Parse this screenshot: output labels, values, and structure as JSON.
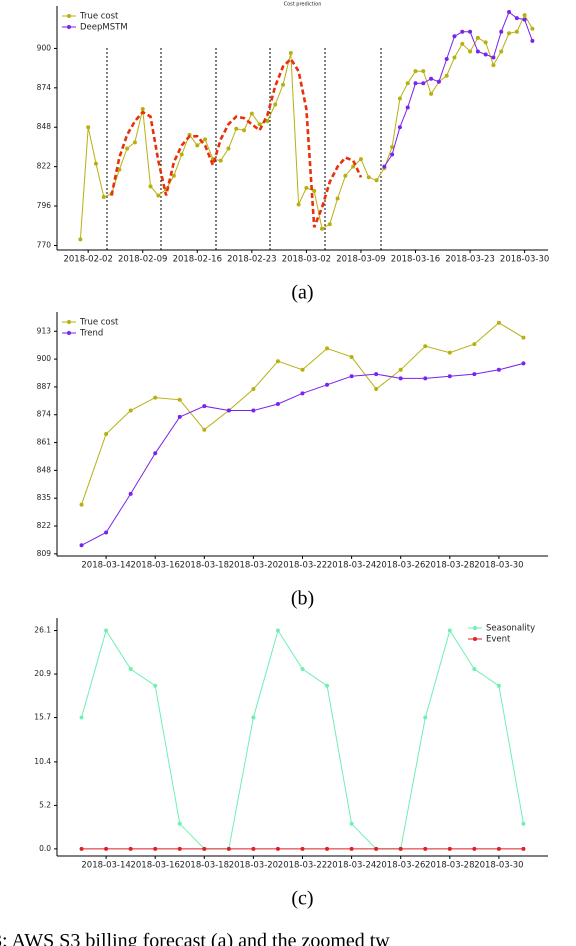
{
  "chart_data": [
    {
      "type": "line",
      "title": "Cost prediction",
      "panel": "(a)",
      "x": [
        "2018-02-01",
        "2018-02-02",
        "2018-02-03",
        "2018-02-04",
        "2018-02-05",
        "2018-02-06",
        "2018-02-07",
        "2018-02-08",
        "2018-02-09",
        "2018-02-10",
        "2018-02-11",
        "2018-02-12",
        "2018-02-13",
        "2018-02-14",
        "2018-02-15",
        "2018-02-16",
        "2018-02-17",
        "2018-02-18",
        "2018-02-19",
        "2018-02-20",
        "2018-02-21",
        "2018-02-22",
        "2018-02-23",
        "2018-02-24",
        "2018-02-25",
        "2018-02-26",
        "2018-02-27",
        "2018-02-28",
        "2018-03-01",
        "2018-03-02",
        "2018-03-03",
        "2018-03-04",
        "2018-03-05",
        "2018-03-06",
        "2018-03-07",
        "2018-03-08",
        "2018-03-09",
        "2018-03-10",
        "2018-03-11",
        "2018-03-12",
        "2018-03-13",
        "2018-03-14",
        "2018-03-15",
        "2018-03-16",
        "2018-03-17",
        "2018-03-18",
        "2018-03-19",
        "2018-03-20",
        "2018-03-21",
        "2018-03-22",
        "2018-03-23",
        "2018-03-24",
        "2018-03-25",
        "2018-03-26",
        "2018-03-27",
        "2018-03-28",
        "2018-03-29",
        "2018-03-30",
        "2018-03-31"
      ],
      "series": [
        {
          "name": "True cost",
          "color": "#b8b010",
          "marker": true,
          "values": [
            774,
            848,
            824,
            802,
            804,
            820,
            834,
            838,
            860,
            809,
            803,
            807,
            816,
            830,
            843,
            836,
            840,
            827,
            826,
            834,
            847,
            846,
            857,
            850,
            852,
            863,
            876,
            897,
            797,
            808,
            806,
            781,
            784,
            801,
            816,
            822,
            827,
            815,
            813,
            821,
            835,
            867,
            877,
            885,
            885,
            870,
            878,
            882,
            894,
            903,
            898,
            907,
            904,
            889,
            898,
            910,
            911,
            922,
            913
          ]
        },
        {
          "name": "DeepMSTM",
          "color": "#7a22ee",
          "marker": true,
          "values": [
            null,
            null,
            null,
            null,
            null,
            null,
            null,
            null,
            null,
            null,
            null,
            null,
            null,
            null,
            null,
            null,
            null,
            null,
            null,
            null,
            null,
            null,
            null,
            null,
            null,
            null,
            null,
            null,
            null,
            null,
            null,
            null,
            null,
            null,
            null,
            null,
            null,
            null,
            null,
            822,
            830,
            848,
            861,
            877,
            877,
            880,
            878,
            893,
            908,
            911,
            911,
            898,
            896,
            894,
            911,
            924,
            920,
            919,
            905
          ]
        },
        {
          "color": "#e8300a",
          "dashed": true,
          "values": [
            null,
            null,
            null,
            null,
            803,
            828,
            843,
            852,
            858,
            855,
            826,
            803,
            825,
            836,
            842,
            842,
            836,
            823,
            840,
            850,
            855,
            854,
            850,
            846,
            856,
            875,
            888,
            893,
            885,
            860,
            782,
            795,
            812,
            822,
            828,
            826,
            815,
            null,
            null,
            null,
            null,
            null,
            null,
            null,
            null,
            null,
            null,
            null,
            null,
            null,
            null,
            null,
            null,
            null,
            null,
            null,
            null,
            null,
            null
          ]
        }
      ],
      "xlim": [
        "2018-01-29",
        "2018-04-02"
      ],
      "xticks": [
        "2018-02-02",
        "2018-02-09",
        "2018-02-16",
        "2018-02-23",
        "2018-03-02",
        "2018-03-09",
        "2018-03-16",
        "2018-03-23",
        "2018-03-30"
      ],
      "ylim": [
        767,
        928
      ],
      "yticks": [
        770,
        796,
        822,
        848,
        874,
        900
      ],
      "legend": "upper left"
    },
    {
      "type": "line",
      "panel": "(b)",
      "x": [
        "2018-03-13",
        "2018-03-14",
        "2018-03-15",
        "2018-03-16",
        "2018-03-17",
        "2018-03-18",
        "2018-03-19",
        "2018-03-20",
        "2018-03-21",
        "2018-03-22",
        "2018-03-23",
        "2018-03-24",
        "2018-03-25",
        "2018-03-26",
        "2018-03-27",
        "2018-03-28",
        "2018-03-29",
        "2018-03-30",
        "2018-03-31"
      ],
      "series": [
        {
          "name": "True cost",
          "color": "#b8b010",
          "marker": true,
          "values": [
            832,
            865,
            876,
            882,
            881,
            867,
            876,
            886,
            899,
            895,
            905,
            901,
            886,
            895,
            906,
            903,
            907,
            917,
            910
          ]
        },
        {
          "name": "Trend",
          "color": "#7a22ee",
          "marker": true,
          "values": [
            813,
            819,
            837,
            856,
            873,
            878,
            876,
            876,
            879,
            884,
            888,
            892,
            893,
            891,
            891,
            892,
            893,
            895,
            898
          ]
        }
      ],
      "xlim": [
        "2018-03-12",
        "2018-04-01"
      ],
      "xticks": [
        "2018-03-14",
        "2018-03-16",
        "2018-03-18",
        "2018-03-20",
        "2018-03-22",
        "2018-03-24",
        "2018-03-26",
        "2018-03-28",
        "2018-03-30"
      ],
      "ylim": [
        808,
        922
      ],
      "yticks": [
        809,
        822,
        835,
        848,
        861,
        874,
        887,
        900,
        913
      ],
      "legend": "upper left"
    },
    {
      "type": "line",
      "panel": "(c)",
      "x": [
        "2018-03-13",
        "2018-03-14",
        "2018-03-15",
        "2018-03-16",
        "2018-03-17",
        "2018-03-18",
        "2018-03-19",
        "2018-03-20",
        "2018-03-21",
        "2018-03-22",
        "2018-03-23",
        "2018-03-24",
        "2018-03-25",
        "2018-03-26",
        "2018-03-27",
        "2018-03-28",
        "2018-03-29",
        "2018-03-30",
        "2018-03-31"
      ],
      "series": [
        {
          "name": "Seasonality",
          "color": "#6ef0b4",
          "marker": true,
          "values": [
            15.7,
            26.1,
            21.5,
            19.5,
            3.0,
            0,
            0,
            15.7,
            26.1,
            21.5,
            19.5,
            3.0,
            0,
            0,
            15.7,
            26.1,
            21.5,
            19.5,
            3.0
          ]
        },
        {
          "name": "Event",
          "color": "#dd2222",
          "marker": true,
          "values": [
            0,
            0,
            0,
            0,
            0,
            0,
            0,
            0,
            0,
            0,
            0,
            0,
            0,
            0,
            0,
            0,
            0,
            0,
            0
          ]
        }
      ],
      "xlim": [
        "2018-03-12",
        "2018-04-01"
      ],
      "xticks": [
        "2018-03-14",
        "2018-03-16",
        "2018-03-18",
        "2018-03-20",
        "2018-03-22",
        "2018-03-24",
        "2018-03-26",
        "2018-03-28",
        "2018-03-30"
      ],
      "ylim": [
        -0.85,
        27.6
      ],
      "yticks": [
        {
          "value": 0,
          "label": "0.0"
        },
        5.2,
        10.4,
        15.7,
        20.9,
        26.1
      ],
      "legend": "upper right"
    }
  ],
  "caption": "3: AWS S3 billing forecast (a) and the zoomed tw"
}
